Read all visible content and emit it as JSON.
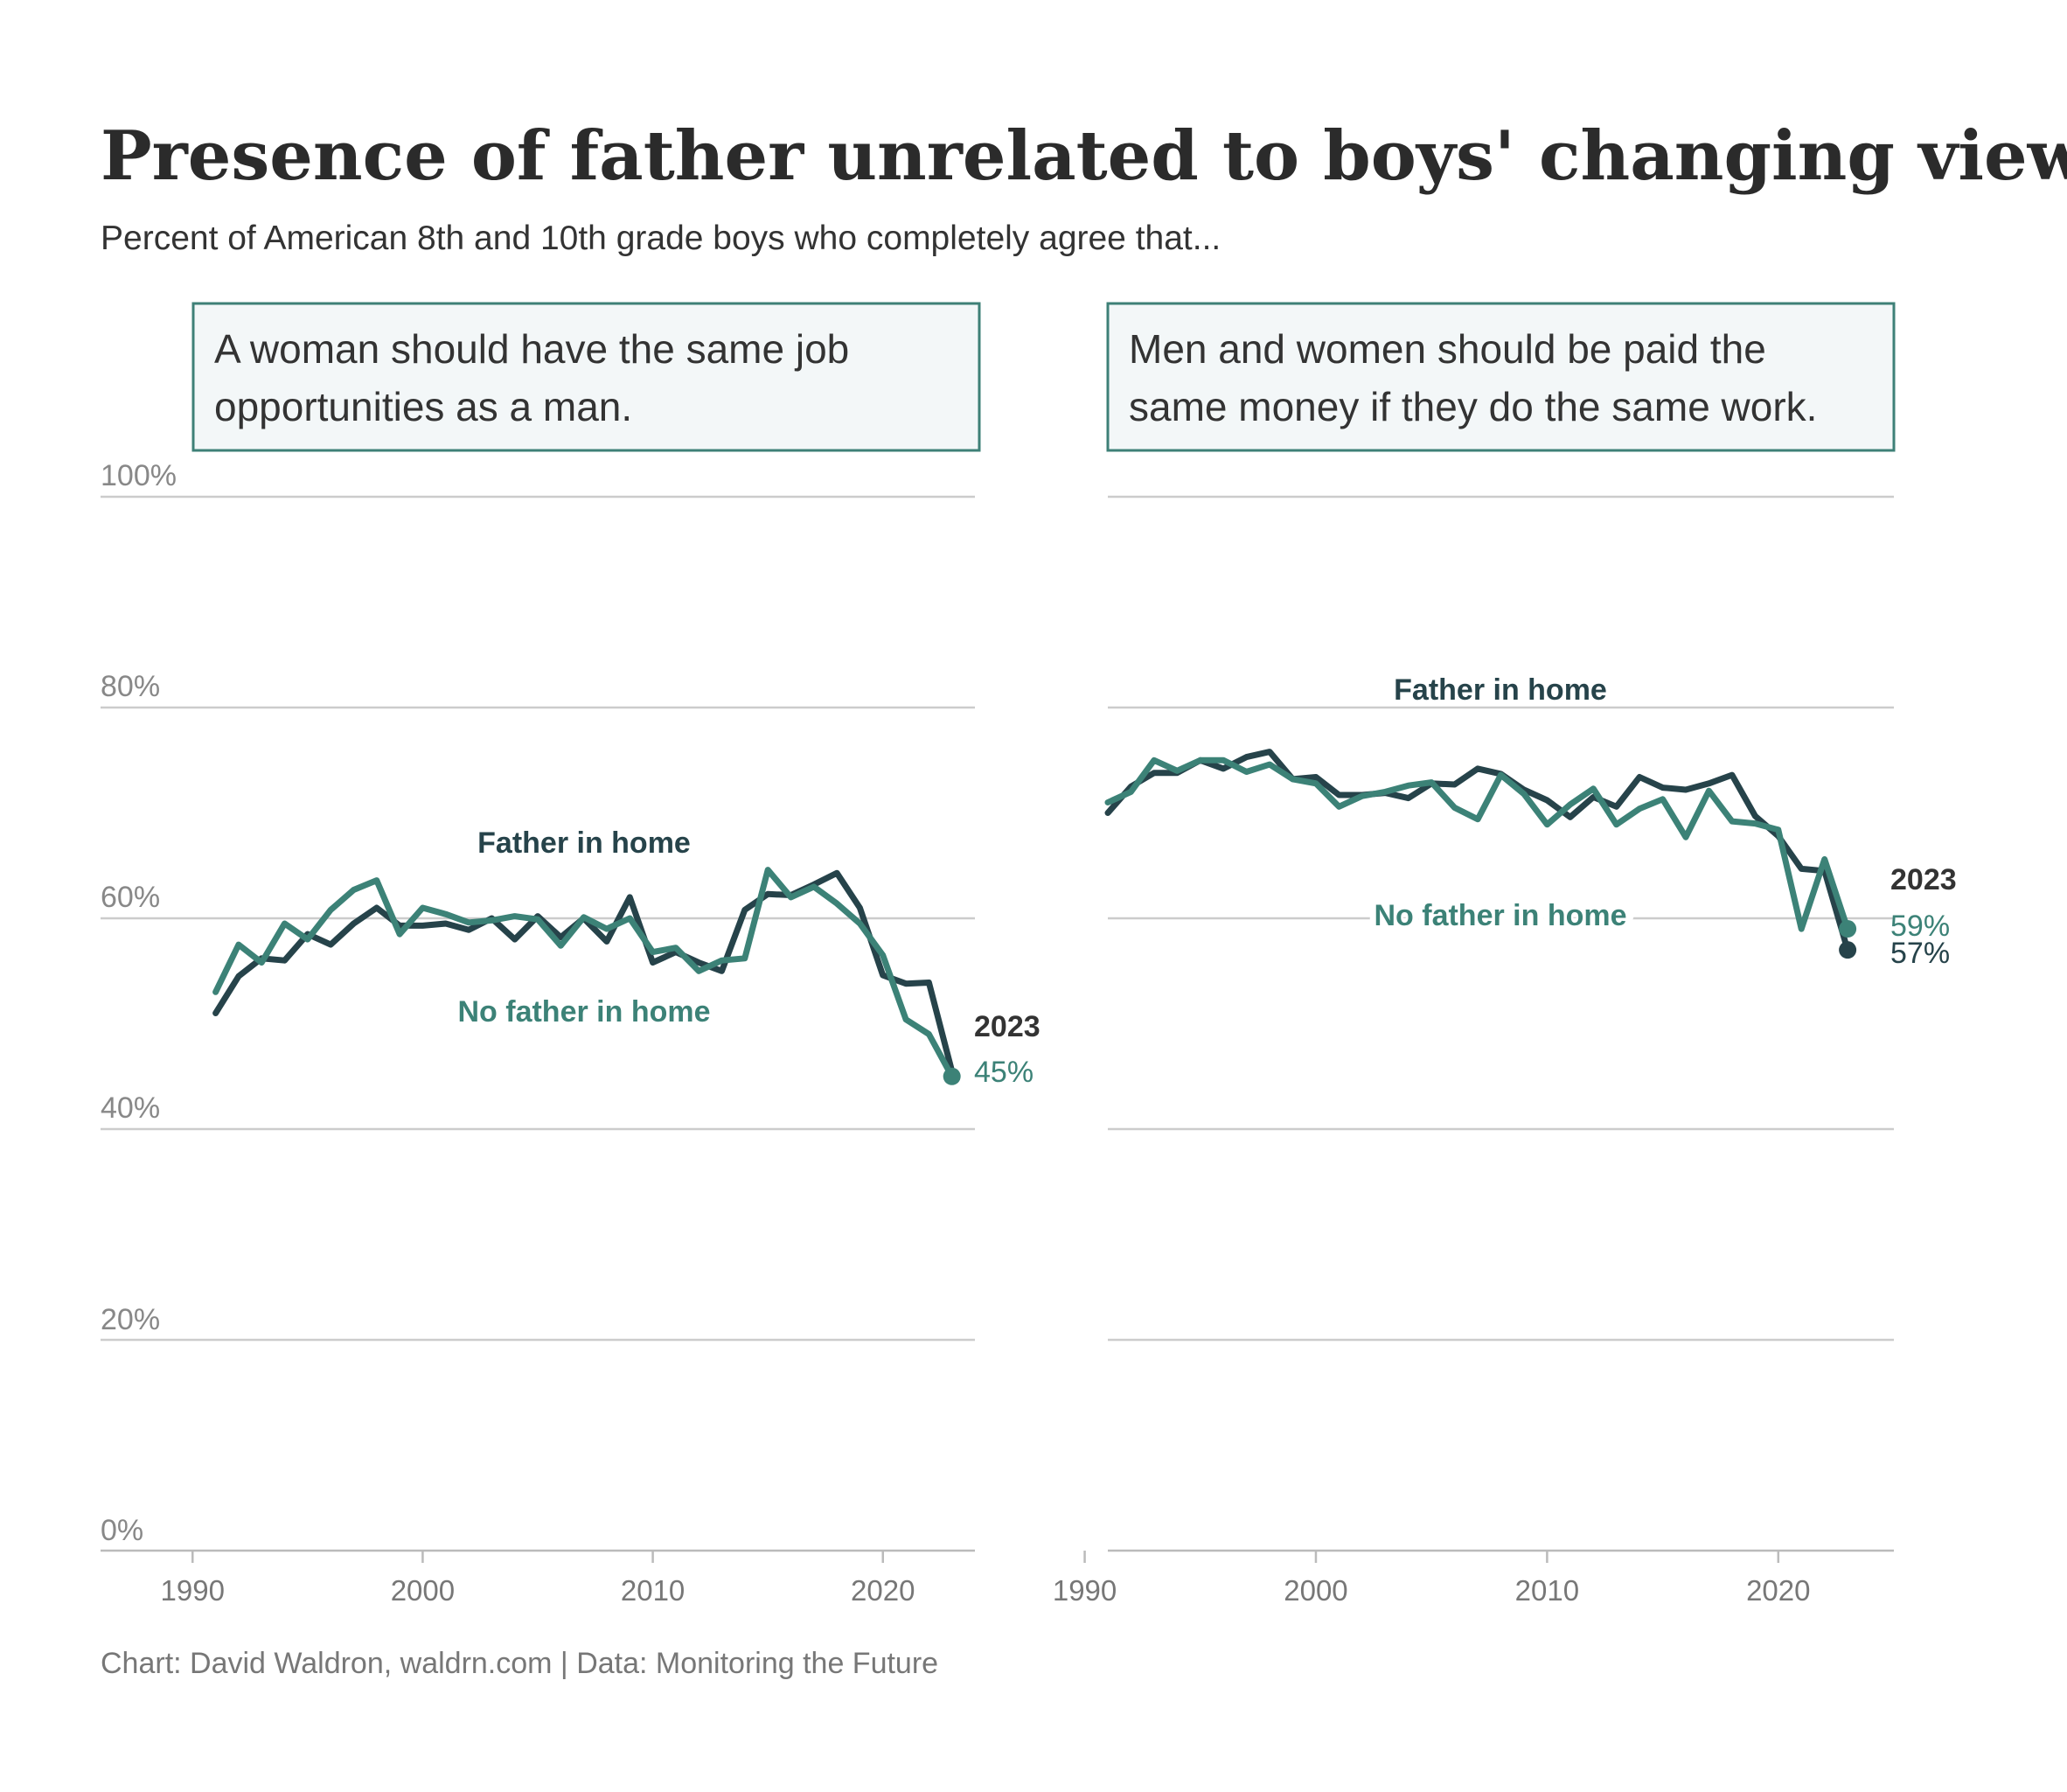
{
  "title": "Presence of father unrelated to boys' changing views",
  "subtitle": "Percent of American 8th and 10th grade boys who completely agree that...",
  "caption": "Chart: David Waldron, waldrn.com | Data: Monitoring the Future",
  "colors": {
    "father": "#26434a",
    "no_father": "#3c8277",
    "grid": "#cccccc",
    "panel_bg": "#f3f7f8",
    "panel_border": "#3e8077"
  },
  "y_ticks": [
    "100%",
    "80%",
    "60%",
    "40%",
    "20%",
    "0%"
  ],
  "x_ticks": [
    "1990",
    "2000",
    "2010",
    "2020"
  ],
  "chart_data": [
    {
      "type": "line",
      "panel_title_lines": [
        "A woman should have the same job",
        "opportunities as a man."
      ],
      "x": [
        1991,
        1992,
        1993,
        1994,
        1995,
        1996,
        1997,
        1998,
        1999,
        2000,
        2001,
        2002,
        2003,
        2004,
        2005,
        2006,
        2007,
        2008,
        2009,
        2010,
        2011,
        2012,
        2013,
        2014,
        2015,
        2016,
        2017,
        2018,
        2019,
        2020,
        2021,
        2022,
        2023
      ],
      "xlim": [
        1986,
        2024
      ],
      "ylim": [
        0,
        100
      ],
      "grid": true,
      "series": [
        {
          "name": "Father in home",
          "key": "father",
          "values": [
            51,
            54.5,
            56.2,
            56,
            58.5,
            57.5,
            59.5,
            61,
            59.3,
            59.3,
            59.5,
            58.9,
            60,
            58,
            60.2,
            58.2,
            60,
            57.8,
            62,
            55.8,
            56.8,
            55.8,
            55,
            60.8,
            62.3,
            62.2,
            63.2,
            64.3,
            61,
            54.6,
            53.8,
            53.9,
            45.5
          ]
        },
        {
          "name": "No father in home",
          "key": "no_father",
          "values": [
            53,
            57.5,
            55.8,
            59.5,
            58,
            60.8,
            62.7,
            63.6,
            58.5,
            61,
            60.4,
            59.6,
            59.8,
            60.2,
            59.9,
            57.4,
            60.1,
            59,
            60,
            56.8,
            57.2,
            55,
            56,
            56.2,
            64.6,
            62,
            63,
            61.4,
            59.5,
            56.5,
            50.4,
            49,
            45
          ]
        }
      ],
      "end_label": {
        "year": "2023",
        "values": [
          {
            "series": "no_father",
            "text": "45%",
            "value": 45
          }
        ]
      }
    },
    {
      "type": "line",
      "panel_title_lines": [
        "Men and women should be paid the",
        "same money if they do the same work."
      ],
      "x": [
        1991,
        1992,
        1993,
        1994,
        1995,
        1996,
        1997,
        1998,
        1999,
        2000,
        2001,
        2002,
        2003,
        2004,
        2005,
        2006,
        2007,
        2008,
        2009,
        2010,
        2011,
        2012,
        2013,
        2014,
        2015,
        2016,
        2017,
        2018,
        2019,
        2020,
        2021,
        2022,
        2023
      ],
      "xlim": [
        1991,
        2025
      ],
      "ylim": [
        0,
        100
      ],
      "grid": true,
      "series": [
        {
          "name": "Father in home",
          "key": "father",
          "values": [
            70,
            72.5,
            73.8,
            73.8,
            75,
            74.2,
            75.3,
            75.8,
            73.2,
            73.4,
            71.7,
            71.7,
            71.9,
            71.4,
            72.8,
            72.7,
            74.2,
            73.7,
            72.2,
            71.2,
            69.6,
            71.5,
            70.6,
            73.4,
            72.4,
            72.2,
            72.8,
            73.6,
            69.7,
            67.8,
            64.7,
            64.5,
            57
          ]
        },
        {
          "name": "No father in home",
          "key": "no_father",
          "values": [
            71,
            72,
            75,
            74,
            75,
            75,
            73.9,
            74.6,
            73.2,
            72.8,
            70.6,
            71.6,
            72,
            72.6,
            72.9,
            70.5,
            69.4,
            73.6,
            71.8,
            68.9,
            70.8,
            72.3,
            68.9,
            70.4,
            71.3,
            67.7,
            72.1,
            69.2,
            69,
            68.4,
            59,
            65.6,
            59
          ]
        }
      ],
      "end_label": {
        "year": "2023",
        "values": [
          {
            "series": "no_father",
            "text": "59%",
            "value": 59
          },
          {
            "series": "father",
            "text": "57%",
            "value": 57
          }
        ]
      }
    }
  ]
}
